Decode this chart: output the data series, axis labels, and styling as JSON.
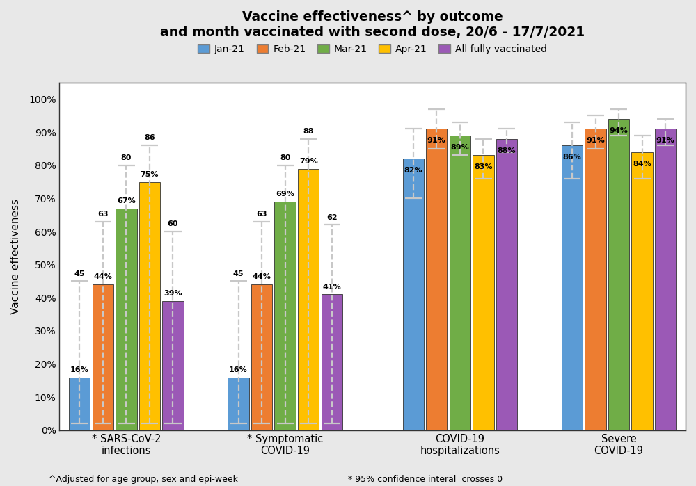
{
  "title_line1": "Vaccine effectiveness^ by outcome",
  "title_line2": "and month vaccinated with second dose, 20/6 - 17/7/2021",
  "ylabel": "Vaccine effectiveness",
  "footnote1": "^Adjusted for age group, sex and epi-week",
  "footnote2": "* 95% confidence interal  crosses 0",
  "categories": [
    "* SARS-CoV-2\ninfections",
    "* Symptomatic\nCOVID-19",
    "COVID-19\nhospitalizations",
    "Severe\nCOVID-19"
  ],
  "series_labels": [
    "Jan-21",
    "Feb-21",
    "Mar-21",
    "Apr-21",
    "All fully vaccinated"
  ],
  "series_colors": [
    "#5b9bd5",
    "#ed7d31",
    "#70ad47",
    "#ffc000",
    "#9b59b6"
  ],
  "legend_edge_color": "#808080",
  "values": [
    [
      16,
      44,
      67,
      75,
      39
    ],
    [
      16,
      44,
      69,
      79,
      41
    ],
    [
      82,
      91,
      89,
      83,
      88
    ],
    [
      86,
      91,
      94,
      84,
      91
    ]
  ],
  "ci_upper": [
    [
      45,
      63,
      80,
      86,
      60
    ],
    [
      45,
      63,
      80,
      88,
      62
    ],
    [
      null,
      null,
      null,
      null,
      null
    ],
    [
      null,
      null,
      null,
      null,
      null
    ]
  ],
  "ci_lower": [
    [
      2,
      2,
      2,
      2,
      2
    ],
    [
      2,
      2,
      2,
      2,
      2
    ],
    [
      null,
      null,
      null,
      null,
      null
    ],
    [
      null,
      null,
      null,
      null,
      null
    ]
  ],
  "ci_upper_high": [
    [
      null,
      null,
      null,
      null,
      null
    ],
    [
      null,
      null,
      null,
      null,
      null
    ],
    [
      91,
      97,
      93,
      88,
      91
    ],
    [
      93,
      95,
      97,
      89,
      94
    ]
  ],
  "ci_lower_high": [
    [
      null,
      null,
      null,
      null,
      null
    ],
    [
      null,
      null,
      null,
      null,
      null
    ],
    [
      70,
      85,
      83,
      76,
      84
    ],
    [
      76,
      85,
      89,
      76,
      86
    ]
  ],
  "value_labels": [
    [
      "16%",
      "44%",
      "67%",
      "75%",
      "39%"
    ],
    [
      "16%",
      "44%",
      "69%",
      "79%",
      "41%"
    ],
    [
      "82%",
      "91%",
      "89%",
      "83%",
      "88%"
    ],
    [
      "86%",
      "91%",
      "94%",
      "84%",
      "91%"
    ]
  ],
  "ci_top_labels": [
    [
      "45",
      "63",
      "80",
      "86",
      "60"
    ],
    [
      "45",
      "63",
      "80",
      "88",
      "62"
    ],
    [
      null,
      null,
      null,
      null,
      null
    ],
    [
      null,
      null,
      null,
      null,
      null
    ]
  ],
  "yticks": [
    0,
    10,
    20,
    30,
    40,
    50,
    60,
    70,
    80,
    90,
    100
  ],
  "ytick_labels": [
    "0%",
    "10%",
    "20%",
    "30%",
    "40%",
    "50%",
    "60%",
    "70%",
    "80%",
    "90%",
    "100%"
  ],
  "background_color": "#e8e8e8",
  "plot_bg_color": "#ffffff",
  "bar_width": 0.14,
  "group_centers": [
    0.42,
    1.42,
    2.52,
    3.52
  ]
}
